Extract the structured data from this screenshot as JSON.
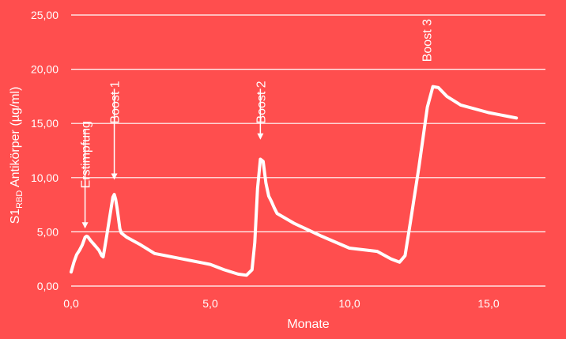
{
  "chart_data": {
    "type": "line",
    "xlabel": "Monate",
    "ylabel_main": "S1",
    "ylabel_sub": "RBD",
    "ylabel_rest": " Antikörper (µg/ml)",
    "xlim": [
      0,
      17
    ],
    "ylim": [
      0,
      25
    ],
    "x_ticks": [
      0,
      5,
      10,
      15
    ],
    "x_tick_labels": [
      "0,0",
      "5,0",
      "10,0",
      "15,0"
    ],
    "y_ticks": [
      0,
      5,
      10,
      15,
      20,
      25
    ],
    "y_tick_labels": [
      "0,00",
      "5,00",
      "10,00",
      "15,00",
      "20,00",
      "25,00"
    ],
    "grid": "horizontal",
    "colors": {
      "background": "#ff4e4e",
      "line": "#ffffff",
      "grid": "#ffffff"
    },
    "series": [
      {
        "x": [
          0.0,
          0.1,
          0.2,
          0.3,
          0.4,
          0.5,
          0.55,
          0.6,
          0.7,
          0.8,
          0.9,
          1.0,
          1.1,
          1.15,
          1.2,
          1.3,
          1.4,
          1.5,
          1.55,
          1.6,
          1.65,
          1.7,
          1.75,
          1.8,
          2.0,
          2.5,
          3.0,
          4.0,
          5.0,
          5.5,
          6.0,
          6.3,
          6.5,
          6.6,
          6.7,
          6.8,
          6.9,
          7.0,
          7.1,
          7.2,
          7.3,
          7.4,
          8.0,
          9.0,
          10.0,
          11.0,
          11.5,
          11.8,
          12.0,
          12.2,
          12.5,
          12.8,
          13.0,
          13.2,
          13.5,
          14.0,
          15.0,
          16.0
        ],
        "y": [
          1.3,
          2.2,
          2.9,
          3.3,
          3.8,
          4.5,
          4.6,
          4.55,
          4.2,
          3.9,
          3.6,
          3.3,
          2.8,
          2.7,
          3.4,
          5.0,
          6.6,
          8.2,
          8.45,
          8.0,
          7.2,
          6.3,
          5.3,
          4.9,
          4.5,
          3.8,
          3.0,
          2.5,
          2.0,
          1.5,
          1.1,
          1.0,
          1.5,
          4.0,
          9.0,
          11.7,
          11.5,
          9.5,
          8.3,
          7.8,
          7.2,
          6.7,
          5.8,
          4.6,
          3.5,
          3.2,
          2.5,
          2.2,
          2.8,
          6.0,
          11.0,
          16.5,
          18.4,
          18.3,
          17.5,
          16.7,
          16.0,
          15.5
        ]
      }
    ],
    "annotations": [
      {
        "label": "Erstimpfung",
        "x": 0.5,
        "y_arrow_top": 14.5,
        "y_arrow_tip": 5.3
      },
      {
        "label": "Boost 1",
        "x": 1.55,
        "y_arrow_top": 18.2,
        "y_arrow_tip": 9.8
      },
      {
        "label": "Boost 2",
        "x": 6.8,
        "y_arrow_top": 18.2,
        "y_arrow_tip": 13.5
      }
    ],
    "peak_label": {
      "label": "Boost 3",
      "x": 13.0
    }
  }
}
